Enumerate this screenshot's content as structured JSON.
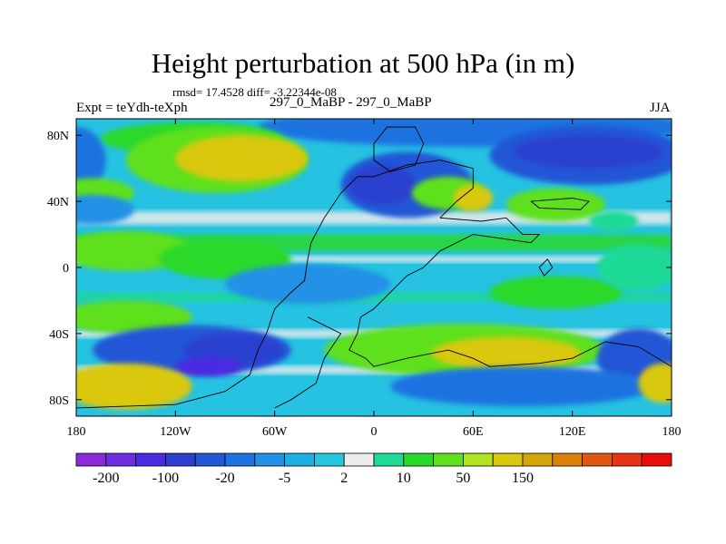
{
  "chart_data": {
    "type": "heatmap",
    "title": "Height perturbation at 500 hPa (in m)",
    "stats_text": "rmsd= 17.4528 diff= -3.22344e-08",
    "experiment_label": "Expt = teYdh-teXph",
    "case_label": "297_0_MaBP - 297_0_MaBP",
    "season_label": "JJA",
    "rmsd": 17.4528,
    "diff": -3.22344e-08,
    "x_range": [
      -180,
      180
    ],
    "y_range": [
      -90,
      90
    ],
    "x_ticks": [
      {
        "value": -180,
        "label": "180"
      },
      {
        "value": -120,
        "label": "120W"
      },
      {
        "value": -60,
        "label": "60W"
      },
      {
        "value": 0,
        "label": "0"
      },
      {
        "value": 60,
        "label": "60E"
      },
      {
        "value": 120,
        "label": "120E"
      },
      {
        "value": 180,
        "label": "180"
      }
    ],
    "y_ticks": [
      {
        "value": 80,
        "label": "80N"
      },
      {
        "value": 40,
        "label": "40N"
      },
      {
        "value": 0,
        "label": "0"
      },
      {
        "value": -40,
        "label": "40S"
      },
      {
        "value": -80,
        "label": "80S"
      }
    ],
    "colorbar": {
      "colors": [
        "#8c2ad9",
        "#6f2ee0",
        "#4a2ce0",
        "#2a3fcf",
        "#2156d6",
        "#1d73e0",
        "#2291e6",
        "#1db0e3",
        "#26c6df",
        "#ececec",
        "#1fd996",
        "#29d92a",
        "#5fe01f",
        "#b1e520",
        "#d9c80f",
        "#d5a50c",
        "#dc7f0a",
        "#df5712",
        "#e83316",
        "#e90c0c"
      ],
      "tick_labels": [
        "-200",
        "-100",
        "-20",
        "-5",
        "2",
        "10",
        "50",
        "150"
      ],
      "tick_boundary_index": [
        1,
        3,
        5,
        7,
        9,
        11,
        13,
        15
      ]
    },
    "field_regions": [
      {
        "lon": 60,
        "lat": 85,
        "rx": 130,
        "ry": 12,
        "level": "-10"
      },
      {
        "lon": -180,
        "lat": 65,
        "rx": 18,
        "ry": 20,
        "level": "-10"
      },
      {
        "lon": -110,
        "lat": 78,
        "rx": 55,
        "ry": 10,
        "level": "5"
      },
      {
        "lon": -95,
        "lat": 65,
        "rx": 55,
        "ry": 20,
        "level": "10"
      },
      {
        "lon": -80,
        "lat": 66,
        "rx": 40,
        "ry": 14,
        "level": "50"
      },
      {
        "lon": 130,
        "lat": 68,
        "rx": 60,
        "ry": 18,
        "level": "-20"
      },
      {
        "lon": 130,
        "lat": 70,
        "rx": 45,
        "ry": 10,
        "level": "-50"
      },
      {
        "lon": -170,
        "lat": 45,
        "rx": 25,
        "ry": 9,
        "level": "10"
      },
      {
        "lon": -170,
        "lat": 35,
        "rx": 25,
        "ry": 9,
        "level": "-5"
      },
      {
        "lon": 20,
        "lat": 50,
        "rx": 40,
        "ry": 20,
        "level": "-20"
      },
      {
        "lon": 5,
        "lat": 50,
        "rx": 20,
        "ry": 12,
        "level": "-50"
      },
      {
        "lon": 45,
        "lat": 45,
        "rx": 22,
        "ry": 10,
        "level": "10"
      },
      {
        "lon": 60,
        "lat": 42,
        "rx": 12,
        "ry": 8,
        "level": "50"
      },
      {
        "lon": 110,
        "lat": 38,
        "rx": 30,
        "ry": 10,
        "level": "10"
      },
      {
        "lon": 145,
        "lat": 28,
        "rx": 15,
        "ry": 6,
        "level": "2"
      },
      {
        "lon": -150,
        "lat": 10,
        "rx": 40,
        "ry": 12,
        "level": "10"
      },
      {
        "lon": -90,
        "lat": 5,
        "rx": 40,
        "ry": 12,
        "level": "5"
      },
      {
        "lon": -40,
        "lat": -10,
        "rx": 50,
        "ry": 12,
        "level": "-5"
      },
      {
        "lon": 110,
        "lat": -15,
        "rx": 40,
        "ry": 10,
        "level": "5"
      },
      {
        "lon": 160,
        "lat": 0,
        "rx": 25,
        "ry": 14,
        "level": "2"
      },
      {
        "lon": -150,
        "lat": -30,
        "rx": 40,
        "ry": 10,
        "level": "10"
      },
      {
        "lon": -110,
        "lat": -50,
        "rx": 60,
        "ry": 15,
        "level": "-20"
      },
      {
        "lon": -85,
        "lat": -50,
        "rx": 30,
        "ry": 10,
        "level": "-50"
      },
      {
        "lon": -100,
        "lat": -60,
        "rx": 20,
        "ry": 6,
        "level": "-100"
      },
      {
        "lon": 55,
        "lat": -50,
        "rx": 85,
        "ry": 16,
        "level": "10"
      },
      {
        "lon": 80,
        "lat": -52,
        "rx": 45,
        "ry": 10,
        "level": "50"
      },
      {
        "lon": 160,
        "lat": -55,
        "rx": 25,
        "ry": 18,
        "level": "-20"
      },
      {
        "lon": -150,
        "lat": -72,
        "rx": 40,
        "ry": 14,
        "level": "50"
      },
      {
        "lon": 90,
        "lat": -72,
        "rx": 80,
        "ry": 12,
        "level": "-10"
      },
      {
        "lon": 175,
        "lat": -70,
        "rx": 15,
        "ry": 12,
        "level": "50"
      }
    ],
    "continent_outlines": [
      {
        "name": "north-america-outline",
        "points": [
          [
            -180,
            -85
          ],
          [
            -120,
            -83
          ],
          [
            -90,
            -75
          ],
          [
            -75,
            -65
          ],
          [
            -70,
            -50
          ],
          [
            -65,
            -40
          ],
          [
            -60,
            -25
          ],
          [
            -50,
            -15
          ],
          [
            -42,
            -8
          ],
          [
            -40,
            5
          ],
          [
            -38,
            15
          ],
          [
            -30,
            30
          ],
          [
            -20,
            45
          ],
          [
            -10,
            55
          ],
          [
            0,
            55
          ],
          [
            20,
            62
          ],
          [
            40,
            65
          ],
          [
            60,
            60
          ],
          [
            60,
            48
          ],
          [
            50,
            40
          ],
          [
            40,
            30
          ]
        ]
      },
      {
        "name": "greenland-outline",
        "points": [
          [
            0,
            75
          ],
          [
            8,
            85
          ],
          [
            25,
            85
          ],
          [
            30,
            75
          ],
          [
            25,
            62
          ],
          [
            10,
            58
          ],
          [
            0,
            65
          ],
          [
            0,
            75
          ]
        ]
      },
      {
        "name": "eurasia-outline",
        "points": [
          [
            40,
            30
          ],
          [
            65,
            28
          ],
          [
            80,
            30
          ],
          [
            90,
            20
          ],
          [
            100,
            20
          ],
          [
            95,
            15
          ],
          [
            60,
            20
          ],
          [
            40,
            10
          ],
          [
            30,
            0
          ],
          [
            20,
            -5
          ],
          [
            10,
            -15
          ],
          [
            0,
            -25
          ],
          [
            -8,
            -30
          ],
          [
            -10,
            -40
          ],
          [
            -15,
            -50
          ],
          [
            -5,
            -55
          ],
          [
            0,
            -60
          ],
          [
            20,
            -55
          ],
          [
            45,
            -50
          ],
          [
            60,
            -55
          ],
          [
            70,
            -60
          ],
          [
            100,
            -58
          ],
          [
            120,
            -55
          ],
          [
            140,
            -45
          ],
          [
            160,
            -48
          ],
          [
            180,
            -60
          ]
        ]
      },
      {
        "name": "south-america-outline",
        "points": [
          [
            -40,
            -30
          ],
          [
            -30,
            -35
          ],
          [
            -20,
            -40
          ],
          [
            -30,
            -55
          ],
          [
            -35,
            -70
          ],
          [
            -50,
            -80
          ],
          [
            -60,
            -85
          ]
        ]
      },
      {
        "name": "island-outline",
        "points": [
          [
            100,
            0
          ],
          [
            105,
            5
          ],
          [
            108,
            0
          ],
          [
            103,
            -5
          ],
          [
            100,
            0
          ]
        ]
      },
      {
        "name": "japan-outline",
        "points": [
          [
            95,
            40
          ],
          [
            120,
            42
          ],
          [
            130,
            40
          ],
          [
            125,
            35
          ],
          [
            100,
            36
          ],
          [
            95,
            40
          ]
        ]
      }
    ]
  }
}
